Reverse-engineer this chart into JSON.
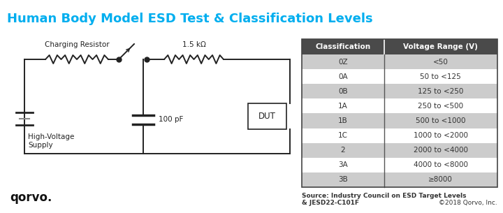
{
  "title": "Human Body Model ESD Test & Classification Levels",
  "title_color": "#00AEEF",
  "title_fontsize": 13,
  "bg_color": "#FFFFFF",
  "table_headers": [
    "Classification",
    "Voltage Range (V)"
  ],
  "table_rows": [
    [
      "0Z",
      "<50"
    ],
    [
      "0A",
      "50 to <125"
    ],
    [
      "0B",
      "125 to <250"
    ],
    [
      "1A",
      "250 to <500"
    ],
    [
      "1B",
      "500 to <1000"
    ],
    [
      "1C",
      "1000 to <2000"
    ],
    [
      "2",
      "2000 to <4000"
    ],
    [
      "3A",
      "4000 to <8000"
    ],
    [
      "3B",
      "≥8000"
    ]
  ],
  "table_header_bg": "#4A4A4A",
  "table_header_fg": "#FFFFFF",
  "table_row_bg_alt": "#CCCCCC",
  "table_row_bg_norm": "#FFFFFF",
  "table_text_color": "#333333",
  "source_text": "Source: Industry Council on ESD Target Levels\n& JESD22-C101F",
  "copyright_text": "©2018 Qorvo, Inc.",
  "footer_fontsize": 7,
  "circuit_label_resistor1": "Charging Resistor",
  "circuit_label_resistor2": "1.5 kΩ",
  "circuit_label_cap": "100 pF",
  "circuit_label_dut": "DUT",
  "circuit_label_supply": "High-Voltage\nSupply"
}
